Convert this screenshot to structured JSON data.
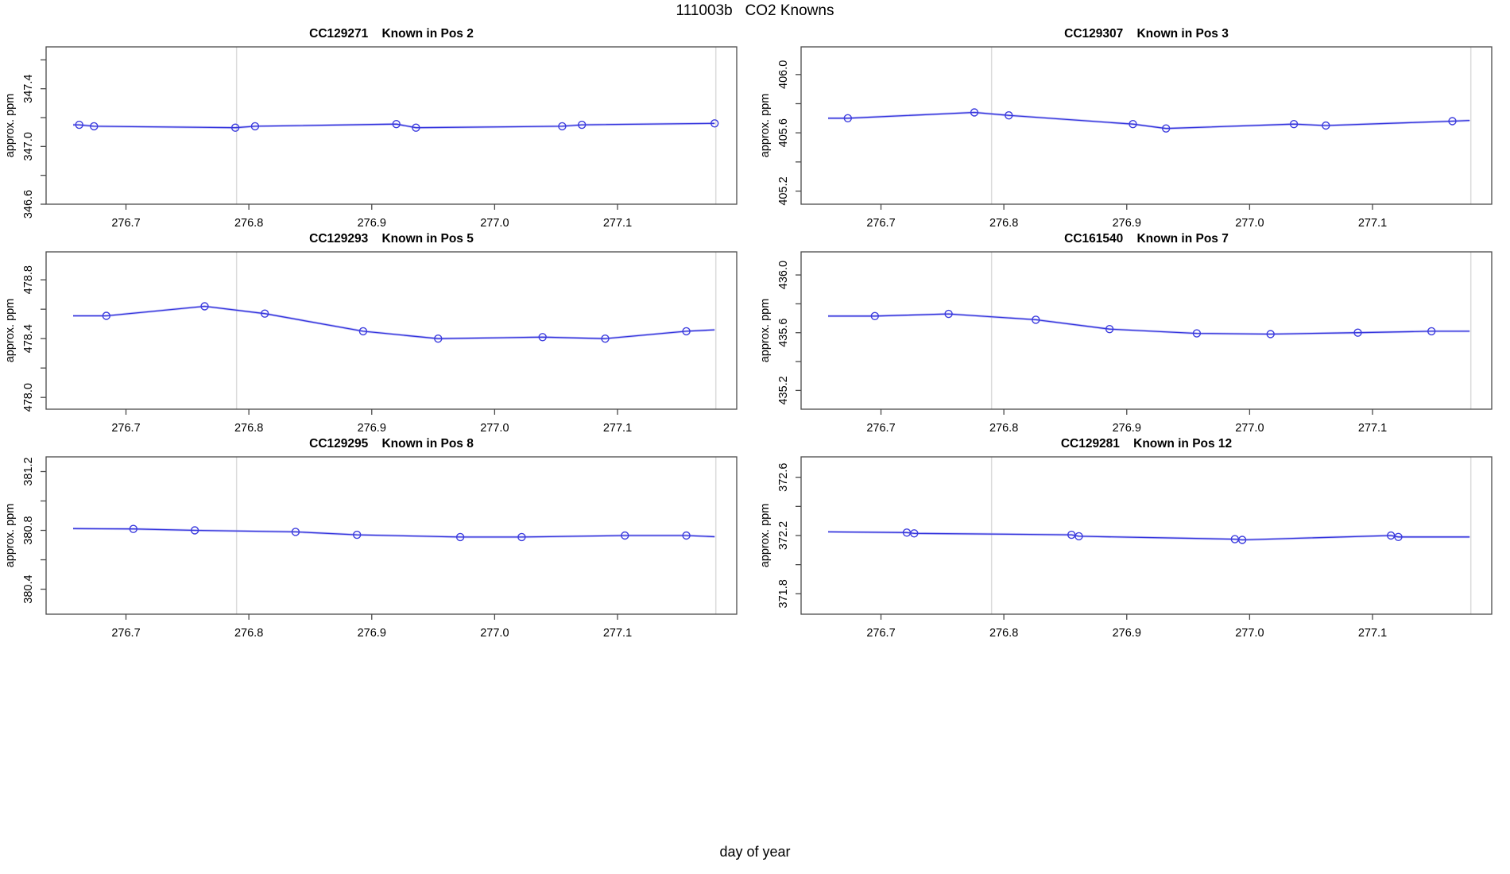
{
  "page": {
    "title": "111003b   CO2 Knowns",
    "xlabel": "day of year"
  },
  "colors": {
    "line": "#3333DD",
    "line_halo": "#9999EE",
    "marker": "#3C3CDE",
    "gridline": "#DBDBDB",
    "box": "#4A4A4A",
    "text": "#000000"
  },
  "chart_data": {
    "type": "line",
    "layout": "2 columns x 3 rows of scatter-line panels, open circle markers, vertical reference gridlines only, no legend",
    "common": {
      "xlabel": "day of year",
      "ylabel": "approx. ppm",
      "xlim": [
        276.635,
        277.197
      ],
      "xticks": [
        276.7,
        276.8,
        276.9,
        277.0,
        277.1
      ],
      "gridlines_x": [
        276.79,
        277.18
      ]
    },
    "plots": [
      {
        "id": "CC129271",
        "pos": "Known in Pos 2",
        "ylim": [
          346.6,
          347.69
        ],
        "yticks": [
          346.6,
          346.8,
          347.0,
          347.2,
          347.4,
          347.6
        ],
        "ytick_labels": [
          346.6,
          347.0,
          347.4
        ],
        "points": [
          [
            276.662,
            347.15
          ],
          [
            276.674,
            347.14
          ],
          [
            276.789,
            347.13
          ],
          [
            276.805,
            347.14
          ],
          [
            276.92,
            347.155
          ],
          [
            276.936,
            347.13
          ],
          [
            277.055,
            347.14
          ],
          [
            277.071,
            347.15
          ],
          [
            277.179,
            347.16
          ]
        ],
        "line": [
          [
            276.657,
            347.15
          ],
          [
            276.662,
            347.15
          ],
          [
            276.674,
            347.14
          ],
          [
            276.789,
            347.13
          ],
          [
            276.805,
            347.14
          ],
          [
            276.92,
            347.155
          ],
          [
            276.936,
            347.13
          ],
          [
            277.055,
            347.14
          ],
          [
            277.071,
            347.15
          ],
          [
            277.179,
            347.16
          ]
        ]
      },
      {
        "id": "CC129307",
        "pos": "Known in Pos 3",
        "ylim": [
          405.11,
          406.19
        ],
        "yticks": [
          405.2,
          405.4,
          405.6,
          405.8,
          406.0
        ],
        "ytick_labels": [
          405.2,
          405.6,
          406.0
        ],
        "points": [
          [
            276.673,
            405.7
          ],
          [
            276.776,
            405.74
          ],
          [
            276.804,
            405.72
          ],
          [
            276.905,
            405.66
          ],
          [
            276.932,
            405.63
          ],
          [
            277.036,
            405.66
          ],
          [
            277.062,
            405.65
          ],
          [
            277.165,
            405.68
          ]
        ],
        "line": [
          [
            276.657,
            405.7
          ],
          [
            276.673,
            405.7
          ],
          [
            276.776,
            405.74
          ],
          [
            276.804,
            405.72
          ],
          [
            276.905,
            405.66
          ],
          [
            276.932,
            405.63
          ],
          [
            277.036,
            405.66
          ],
          [
            277.062,
            405.65
          ],
          [
            277.165,
            405.68
          ],
          [
            277.179,
            405.685
          ]
        ]
      },
      {
        "id": "CC129293",
        "pos": "Known in Pos 5",
        "ylim": [
          477.92,
          478.99
        ],
        "yticks": [
          478.0,
          478.2,
          478.4,
          478.6,
          478.8
        ],
        "ytick_labels": [
          478.0,
          478.4,
          478.8
        ],
        "points": [
          [
            276.684,
            478.555
          ],
          [
            276.764,
            478.62
          ],
          [
            276.813,
            478.57
          ],
          [
            276.893,
            478.45
          ],
          [
            276.954,
            478.4
          ],
          [
            277.039,
            478.41
          ],
          [
            277.09,
            478.4
          ],
          [
            277.156,
            478.45
          ]
        ],
        "line": [
          [
            276.657,
            478.555
          ],
          [
            276.684,
            478.555
          ],
          [
            276.764,
            478.62
          ],
          [
            276.813,
            478.57
          ],
          [
            276.893,
            478.45
          ],
          [
            276.954,
            478.4
          ],
          [
            277.039,
            478.41
          ],
          [
            277.09,
            478.4
          ],
          [
            277.156,
            478.45
          ],
          [
            277.179,
            478.46
          ]
        ]
      },
      {
        "id": "CC161540",
        "pos": "Known in Pos 7",
        "ylim": [
          435.07,
          436.16
        ],
        "yticks": [
          435.2,
          435.4,
          435.6,
          435.8,
          436.0
        ],
        "ytick_labels": [
          435.2,
          435.6,
          436.0
        ],
        "points": [
          [
            276.695,
            435.715
          ],
          [
            276.755,
            435.73
          ],
          [
            276.826,
            435.69
          ],
          [
            276.886,
            435.625
          ],
          [
            276.957,
            435.595
          ],
          [
            277.017,
            435.59
          ],
          [
            277.088,
            435.6
          ],
          [
            277.148,
            435.61
          ]
        ],
        "line": [
          [
            276.657,
            435.715
          ],
          [
            276.695,
            435.715
          ],
          [
            276.755,
            435.73
          ],
          [
            276.826,
            435.69
          ],
          [
            276.886,
            435.625
          ],
          [
            276.957,
            435.595
          ],
          [
            277.017,
            435.59
          ],
          [
            277.088,
            435.6
          ],
          [
            277.148,
            435.61
          ],
          [
            277.179,
            435.61
          ]
        ]
      },
      {
        "id": "CC129295",
        "pos": "Known in Pos 8",
        "ylim": [
          380.23,
          381.3
        ],
        "yticks": [
          380.4,
          380.6,
          380.8,
          381.0,
          381.2
        ],
        "ytick_labels": [
          380.4,
          380.8,
          381.2
        ],
        "points": [
          [
            276.706,
            380.81
          ],
          [
            276.756,
            380.8
          ],
          [
            276.838,
            380.79
          ],
          [
            276.888,
            380.77
          ],
          [
            276.972,
            380.755
          ],
          [
            277.022,
            380.755
          ],
          [
            277.106,
            380.765
          ],
          [
            277.156,
            380.765
          ]
        ],
        "line": [
          [
            276.657,
            380.812
          ],
          [
            276.706,
            380.81
          ],
          [
            276.756,
            380.8
          ],
          [
            276.838,
            380.79
          ],
          [
            276.888,
            380.77
          ],
          [
            276.972,
            380.755
          ],
          [
            277.022,
            380.755
          ],
          [
            277.106,
            380.765
          ],
          [
            277.156,
            380.765
          ],
          [
            277.179,
            380.757
          ]
        ]
      },
      {
        "id": "CC129281",
        "pos": "Known in Pos 12",
        "ylim": [
          371.66,
          372.74
        ],
        "yticks": [
          371.8,
          372.0,
          372.2,
          372.4,
          372.6
        ],
        "ytick_labels": [
          371.8,
          372.2,
          372.6
        ],
        "points": [
          [
            276.721,
            372.22
          ],
          [
            276.727,
            372.215
          ],
          [
            276.855,
            372.205
          ],
          [
            276.861,
            372.195
          ],
          [
            276.988,
            372.175
          ],
          [
            276.994,
            372.17
          ],
          [
            277.115,
            372.2
          ],
          [
            277.121,
            372.19
          ]
        ],
        "line": [
          [
            276.657,
            372.225
          ],
          [
            276.721,
            372.22
          ],
          [
            276.727,
            372.215
          ],
          [
            276.855,
            372.205
          ],
          [
            276.861,
            372.195
          ],
          [
            276.988,
            372.175
          ],
          [
            276.994,
            372.17
          ],
          [
            277.115,
            372.2
          ],
          [
            277.121,
            372.19
          ],
          [
            277.179,
            372.19
          ]
        ]
      }
    ]
  }
}
